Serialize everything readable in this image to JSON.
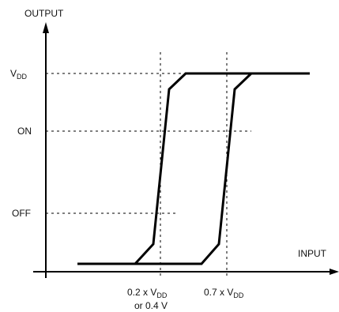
{
  "labels": {
    "y_axis": "OUTPUT",
    "x_axis": "INPUT",
    "vdd_main": "V",
    "vdd_sub": "DD",
    "on": "ON",
    "off": "OFF",
    "thr_low_prefix": "0.2 x V",
    "thr_low_sub": "DD",
    "thr_low_alt": "or 0.4 V",
    "thr_high_prefix": "0.7 x V",
    "thr_high_sub": "DD"
  }
}
